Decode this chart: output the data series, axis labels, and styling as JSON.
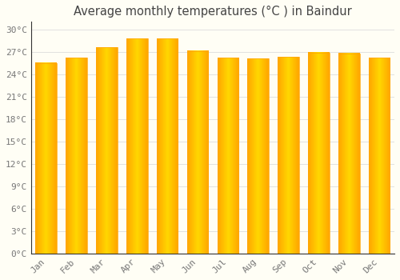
{
  "title": "Average monthly temperatures (°C ) in Baindur",
  "months": [
    "Jan",
    "Feb",
    "Mar",
    "Apr",
    "May",
    "Jun",
    "Jul",
    "Aug",
    "Sep",
    "Oct",
    "Nov",
    "Dec"
  ],
  "temperatures": [
    25.5,
    26.2,
    27.6,
    28.8,
    28.8,
    27.1,
    26.2,
    26.1,
    26.3,
    26.9,
    26.8,
    26.2
  ],
  "bar_color": "#FFA500",
  "bar_center_color": "#FFD700",
  "background_color": "#FFFEF5",
  "grid_color": "#DDDDDD",
  "title_color": "#444444",
  "tick_color": "#777777",
  "spine_color": "#333333",
  "ylim": [
    0,
    31
  ],
  "yticks": [
    0,
    3,
    6,
    9,
    12,
    15,
    18,
    21,
    24,
    27,
    30
  ],
  "ytick_labels": [
    "0°C",
    "3°C",
    "6°C",
    "9°C",
    "12°C",
    "15°C",
    "18°C",
    "21°C",
    "24°C",
    "27°C",
    "30°C"
  ],
  "title_fontsize": 10.5,
  "tick_fontsize": 8
}
